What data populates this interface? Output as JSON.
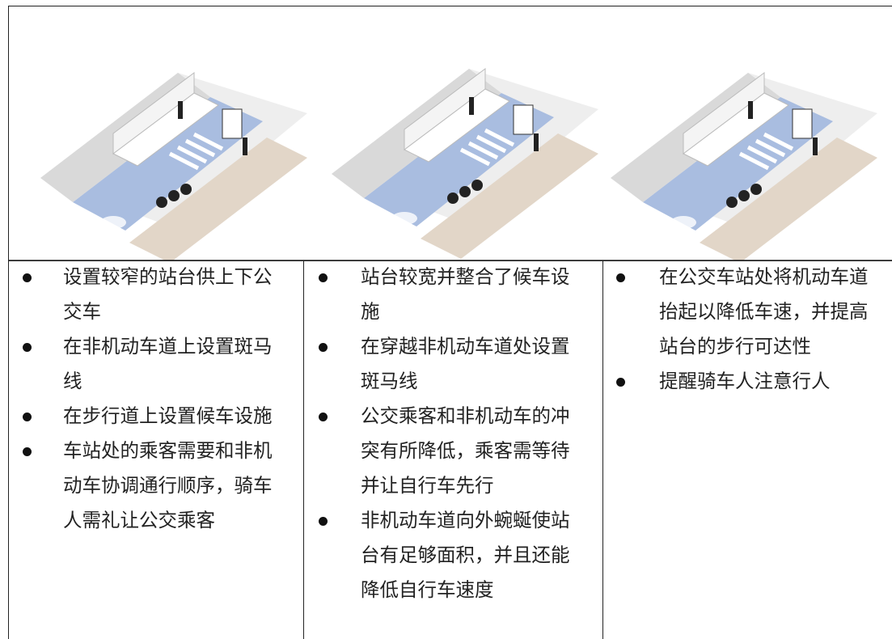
{
  "table": {
    "columns": [
      {
        "items": [
          "设置较窄的站台供上下公交车",
          "在非机动车道上设置斑马线",
          "在步行道上设置候车设施",
          "车站处的乘客需要和非机动车协调通行顺序，骑车人需礼让公交乘客"
        ]
      },
      {
        "items": [
          "站台较宽并整合了候车设施",
          "在穿越非机动车道处设置斑马线",
          "公交乘客和非机动车的冲突有所降低，乘客需等待并让自行车先行",
          "非机动车道向外蜿蜒使站台有足够面积，并且还能降低自行车速度"
        ]
      },
      {
        "items": [
          "在公交车站处将机动车道抬起以降低车速，并提高站台的步行可达性",
          "提醒骑车人注意行人"
        ]
      }
    ]
  }
}
